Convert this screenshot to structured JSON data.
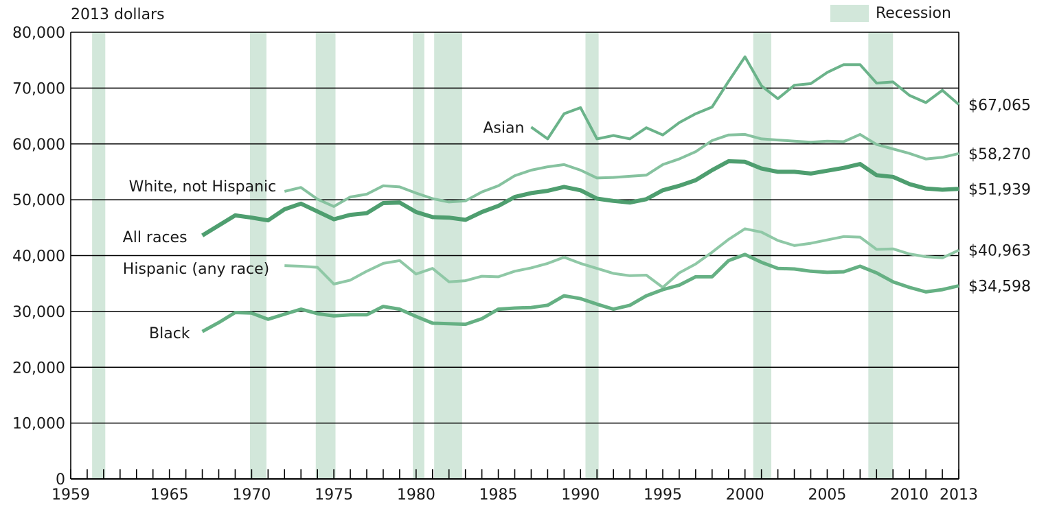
{
  "chart_data": {
    "type": "line",
    "ylabel": "2013 dollars",
    "ylim": [
      0,
      80000
    ],
    "xlim": [
      1959,
      2013
    ],
    "grid": true,
    "y_ticks": [
      0,
      10000,
      20000,
      30000,
      40000,
      50000,
      60000,
      70000,
      80000
    ],
    "y_tick_labels": [
      "0",
      "10,000",
      "20,000",
      "30,000",
      "40,000",
      "50,000",
      "60,000",
      "70,000",
      "80,000"
    ],
    "x_tick_labels": [
      {
        "value": 1959,
        "label": "1959"
      },
      {
        "value": 1965,
        "label": "1965"
      },
      {
        "value": 1970,
        "label": "1970"
      },
      {
        "value": 1975,
        "label": "1975"
      },
      {
        "value": 1980,
        "label": "1980"
      },
      {
        "value": 1985,
        "label": "1985"
      },
      {
        "value": 1990,
        "label": "1990"
      },
      {
        "value": 1995,
        "label": "1995"
      },
      {
        "value": 2000,
        "label": "2000"
      },
      {
        "value": 2005,
        "label": "2005"
      },
      {
        "value": 2010,
        "label": "2010"
      },
      {
        "value": 2013,
        "label": "2013"
      }
    ],
    "legend": {
      "label": "Recession",
      "color": "#d2e7da",
      "placement": "top-right"
    },
    "recessions": [
      [
        1960.3,
        1961.1
      ],
      [
        1969.9,
        1970.9
      ],
      [
        1973.9,
        1975.1
      ],
      [
        1979.8,
        1980.5
      ],
      [
        1981.1,
        1982.8
      ],
      [
        1990.3,
        1991.1
      ],
      [
        2000.5,
        2001.6
      ],
      [
        2007.5,
        2009.0
      ]
    ],
    "series": [
      {
        "name": "Asian",
        "end_label": "$67,065",
        "color": "#6bb38a",
        "width": 4,
        "x": [
          1987,
          1988,
          1989,
          1990,
          1991,
          1992,
          1993,
          1994,
          1995,
          1996,
          1997,
          1998,
          1999,
          2000,
          2001,
          2002,
          2003,
          2004,
          2005,
          2006,
          2007,
          2008,
          2009,
          2010,
          2011,
          2012,
          2013
        ],
        "y": [
          63000,
          60900,
          65400,
          66500,
          60900,
          61500,
          60900,
          62900,
          61600,
          63800,
          65400,
          66600,
          71200,
          75600,
          70400,
          68100,
          70500,
          70800,
          72800,
          74200,
          74200,
          70900,
          71100,
          68700,
          67400,
          69600,
          67065
        ]
      },
      {
        "name": "White, not Hispanic",
        "end_label": "$58,270",
        "color": "#86c29f",
        "width": 4,
        "x": [
          1972,
          1973,
          1974,
          1975,
          1976,
          1977,
          1978,
          1979,
          1980,
          1981,
          1982,
          1983,
          1984,
          1985,
          1986,
          1987,
          1988,
          1989,
          1990,
          1991,
          1992,
          1993,
          1994,
          1995,
          1996,
          1997,
          1998,
          1999,
          2000,
          2001,
          2002,
          2003,
          2004,
          2005,
          2006,
          2007,
          2008,
          2009,
          2010,
          2011,
          2012,
          2013
        ],
        "y": [
          51500,
          52200,
          50100,
          48800,
          50500,
          51000,
          52500,
          52300,
          51200,
          50200,
          49600,
          49800,
          51400,
          52500,
          54300,
          55300,
          55900,
          56300,
          55300,
          53900,
          54000,
          54200,
          54400,
          56300,
          57300,
          58600,
          60600,
          61600,
          61700,
          60900,
          60700,
          60500,
          60300,
          60500,
          60400,
          61700,
          59900,
          59100,
          58300,
          57300,
          57600,
          58270
        ]
      },
      {
        "name": "All races",
        "end_label": "$51,939",
        "color": "#4e9e6f",
        "width": 6,
        "x": [
          1967,
          1968,
          1969,
          1970,
          1971,
          1972,
          1973,
          1974,
          1975,
          1976,
          1977,
          1978,
          1979,
          1980,
          1981,
          1982,
          1983,
          1984,
          1985,
          1986,
          1987,
          1988,
          1989,
          1990,
          1991,
          1992,
          1993,
          1994,
          1995,
          1996,
          1997,
          1998,
          1999,
          2000,
          2001,
          2002,
          2003,
          2004,
          2005,
          2006,
          2007,
          2008,
          2009,
          2010,
          2011,
          2012,
          2013
        ],
        "y": [
          43600,
          45400,
          47200,
          46800,
          46300,
          48300,
          49300,
          47900,
          46500,
          47300,
          47600,
          49400,
          49500,
          47800,
          46900,
          46800,
          46400,
          47800,
          48900,
          50500,
          51200,
          51600,
          52300,
          51700,
          50200,
          49800,
          49500,
          50100,
          51700,
          52500,
          53500,
          55300,
          56900,
          56800,
          55600,
          55000,
          55000,
          54700,
          55200,
          55700,
          56400,
          54400,
          54100,
          52800,
          52000,
          51800,
          51939
        ]
      },
      {
        "name": "Hispanic (any race)",
        "end_label": "$40,963",
        "color": "#8fc8a6",
        "width": 4,
        "x": [
          1972,
          1973,
          1974,
          1975,
          1976,
          1977,
          1978,
          1979,
          1980,
          1981,
          1982,
          1983,
          1984,
          1985,
          1986,
          1987,
          1988,
          1989,
          1990,
          1991,
          1992,
          1993,
          1994,
          1995,
          1996,
          1997,
          1998,
          1999,
          2000,
          2001,
          2002,
          2003,
          2004,
          2005,
          2006,
          2007,
          2008,
          2009,
          2010,
          2011,
          2012,
          2013
        ],
        "y": [
          38200,
          38100,
          37900,
          34900,
          35600,
          37200,
          38600,
          39100,
          36700,
          37700,
          35300,
          35500,
          36300,
          36200,
          37200,
          37800,
          38600,
          39700,
          38600,
          37700,
          36800,
          36400,
          36500,
          34300,
          36900,
          38500,
          40600,
          42900,
          44800,
          44200,
          42700,
          41800,
          42200,
          42800,
          43400,
          43300,
          41100,
          41200,
          40300,
          39800,
          39600,
          40963
        ]
      },
      {
        "name": "Black",
        "end_label": "$34,598",
        "color": "#65b083",
        "width": 5,
        "x": [
          1967,
          1968,
          1969,
          1970,
          1971,
          1972,
          1973,
          1974,
          1975,
          1976,
          1977,
          1978,
          1979,
          1980,
          1981,
          1982,
          1983,
          1984,
          1985,
          1986,
          1987,
          1988,
          1989,
          1990,
          1991,
          1992,
          1993,
          1994,
          1995,
          1996,
          1997,
          1998,
          1999,
          2000,
          2001,
          2002,
          2003,
          2004,
          2005,
          2006,
          2007,
          2008,
          2009,
          2010,
          2011,
          2012,
          2013
        ],
        "y": [
          26400,
          28000,
          29800,
          29700,
          28600,
          29500,
          30400,
          29600,
          29200,
          29400,
          29400,
          30900,
          30400,
          29100,
          27900,
          27800,
          27700,
          28700,
          30400,
          30600,
          30700,
          31100,
          32800,
          32300,
          31300,
          30400,
          31100,
          32800,
          33900,
          34700,
          36200,
          36200,
          39100,
          40200,
          38800,
          37700,
          37600,
          37200,
          37000,
          37100,
          38100,
          36900,
          35300,
          34300,
          33500,
          33900,
          34598
        ]
      }
    ]
  }
}
